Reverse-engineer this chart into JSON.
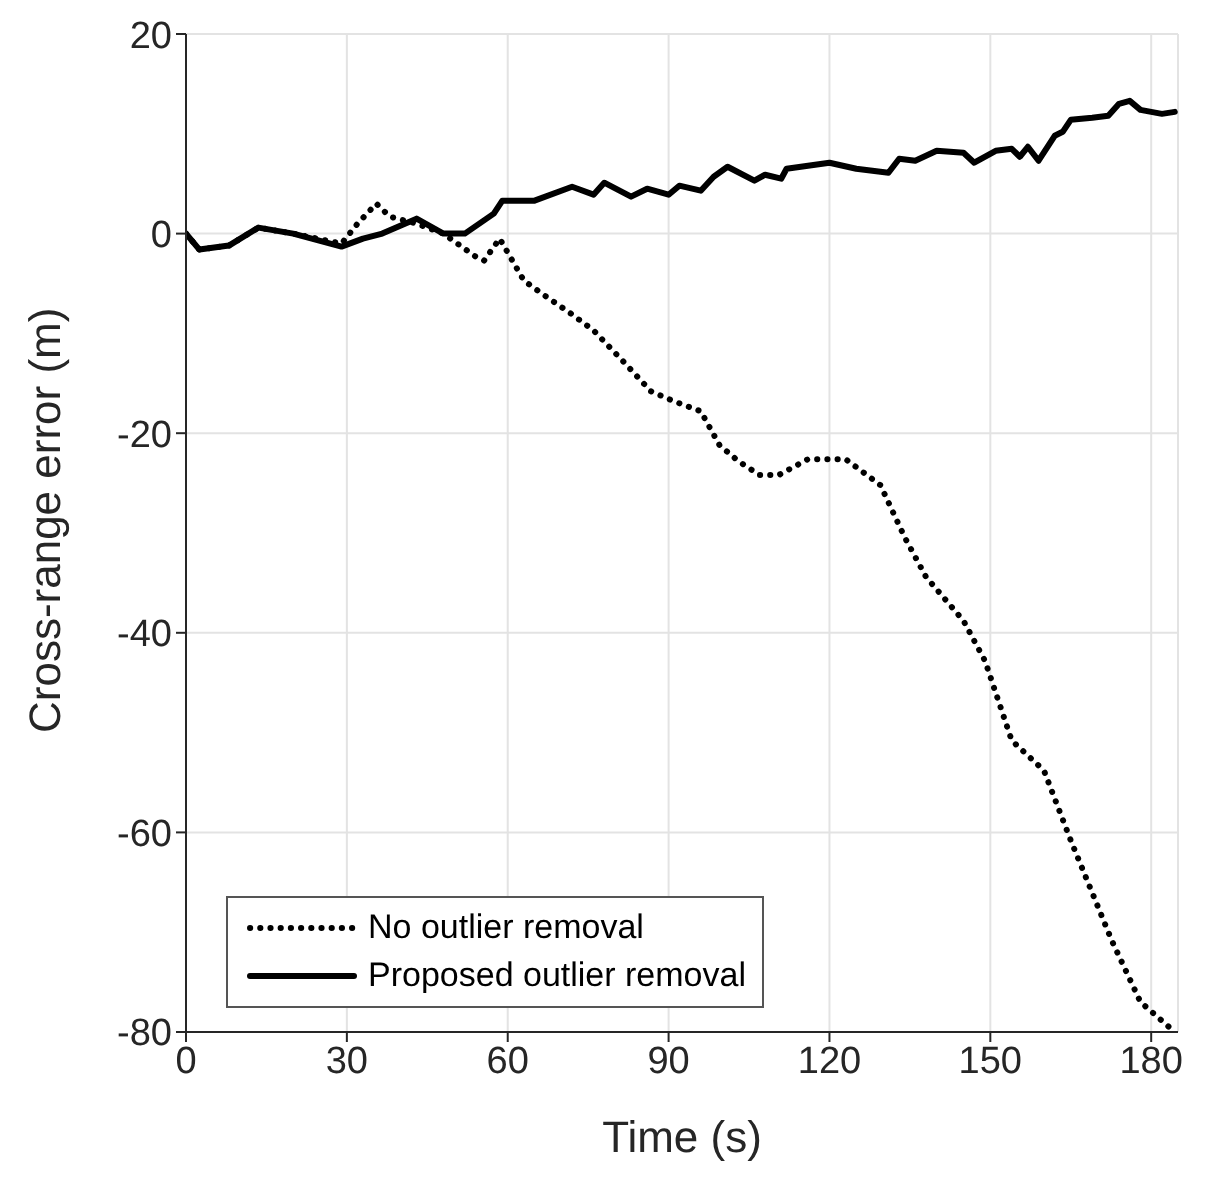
{
  "chart_data": {
    "type": "line",
    "xlabel": "Time (s)",
    "ylabel": "Cross-range error (m)",
    "xlim": [
      0,
      185
    ],
    "ylim": [
      -80,
      20
    ],
    "xticks": [
      0,
      30,
      60,
      90,
      120,
      150,
      180
    ],
    "yticks": [
      -80,
      -60,
      -40,
      -20,
      0,
      20
    ],
    "grid": true,
    "legend": "bottom left",
    "marker": "none",
    "series": [
      {
        "name": "No outlier removal",
        "color": "#000000",
        "line_style": "dotted",
        "x": [
          0,
          2.5,
          8,
          13.5,
          20,
          29,
          32,
          35.5,
          38,
          43,
          48,
          54,
          55.6,
          58.5,
          63,
          66.6,
          72,
          76,
          81,
          86.7,
          91,
          96,
          99.5,
          103,
          107,
          110.5,
          116,
          123,
          129.5,
          134,
          138,
          145,
          149,
          154,
          160,
          165,
          172.7,
          178,
          184.4
        ],
        "values": [
          0,
          -1.6,
          -1.2,
          0.6,
          0,
          -1,
          1,
          3,
          1.7,
          1,
          0,
          -2.3,
          -2.7,
          -0.5,
          -4.7,
          -6.1,
          -8.1,
          -9.7,
          -12.5,
          -15.8,
          -16.8,
          -17.8,
          -21.2,
          -22.8,
          -24.2,
          -24.2,
          -22.6,
          -22.6,
          -25.2,
          -30.4,
          -34.4,
          -38.8,
          -42.8,
          -50.8,
          -53.8,
          -60.8,
          -70.9,
          -77,
          -80
        ]
      },
      {
        "name": "Proposed outlier removal",
        "color": "#000000",
        "line_style": "solid",
        "x": [
          0,
          2.5,
          8,
          13.5,
          20,
          29,
          33,
          36.6,
          43,
          48,
          52,
          57.4,
          59,
          65,
          72,
          76,
          78,
          83,
          86,
          90,
          92,
          96,
          98.4,
          101,
          106,
          108,
          111,
          112,
          120,
          125,
          131,
          133,
          136,
          140,
          145,
          147,
          151,
          154,
          155.5,
          157,
          159,
          162,
          163.5,
          165,
          169,
          172,
          174,
          176,
          178,
          182,
          184.4
        ],
        "values": [
          0,
          -1.6,
          -1.2,
          0.6,
          0,
          -1.3,
          -0.5,
          0,
          1.5,
          0,
          0,
          2,
          3.3,
          3.3,
          4.7,
          3.9,
          5.1,
          3.7,
          4.5,
          3.9,
          4.8,
          4.3,
          5.7,
          6.7,
          5.3,
          5.9,
          5.5,
          6.5,
          7.1,
          6.5,
          6.1,
          7.5,
          7.3,
          8.3,
          8.1,
          7.1,
          8.3,
          8.5,
          7.7,
          8.7,
          7.3,
          9.8,
          10.2,
          11.4,
          11.6,
          11.8,
          13,
          13.3,
          12.4,
          12,
          12.2
        ]
      }
    ]
  }
}
